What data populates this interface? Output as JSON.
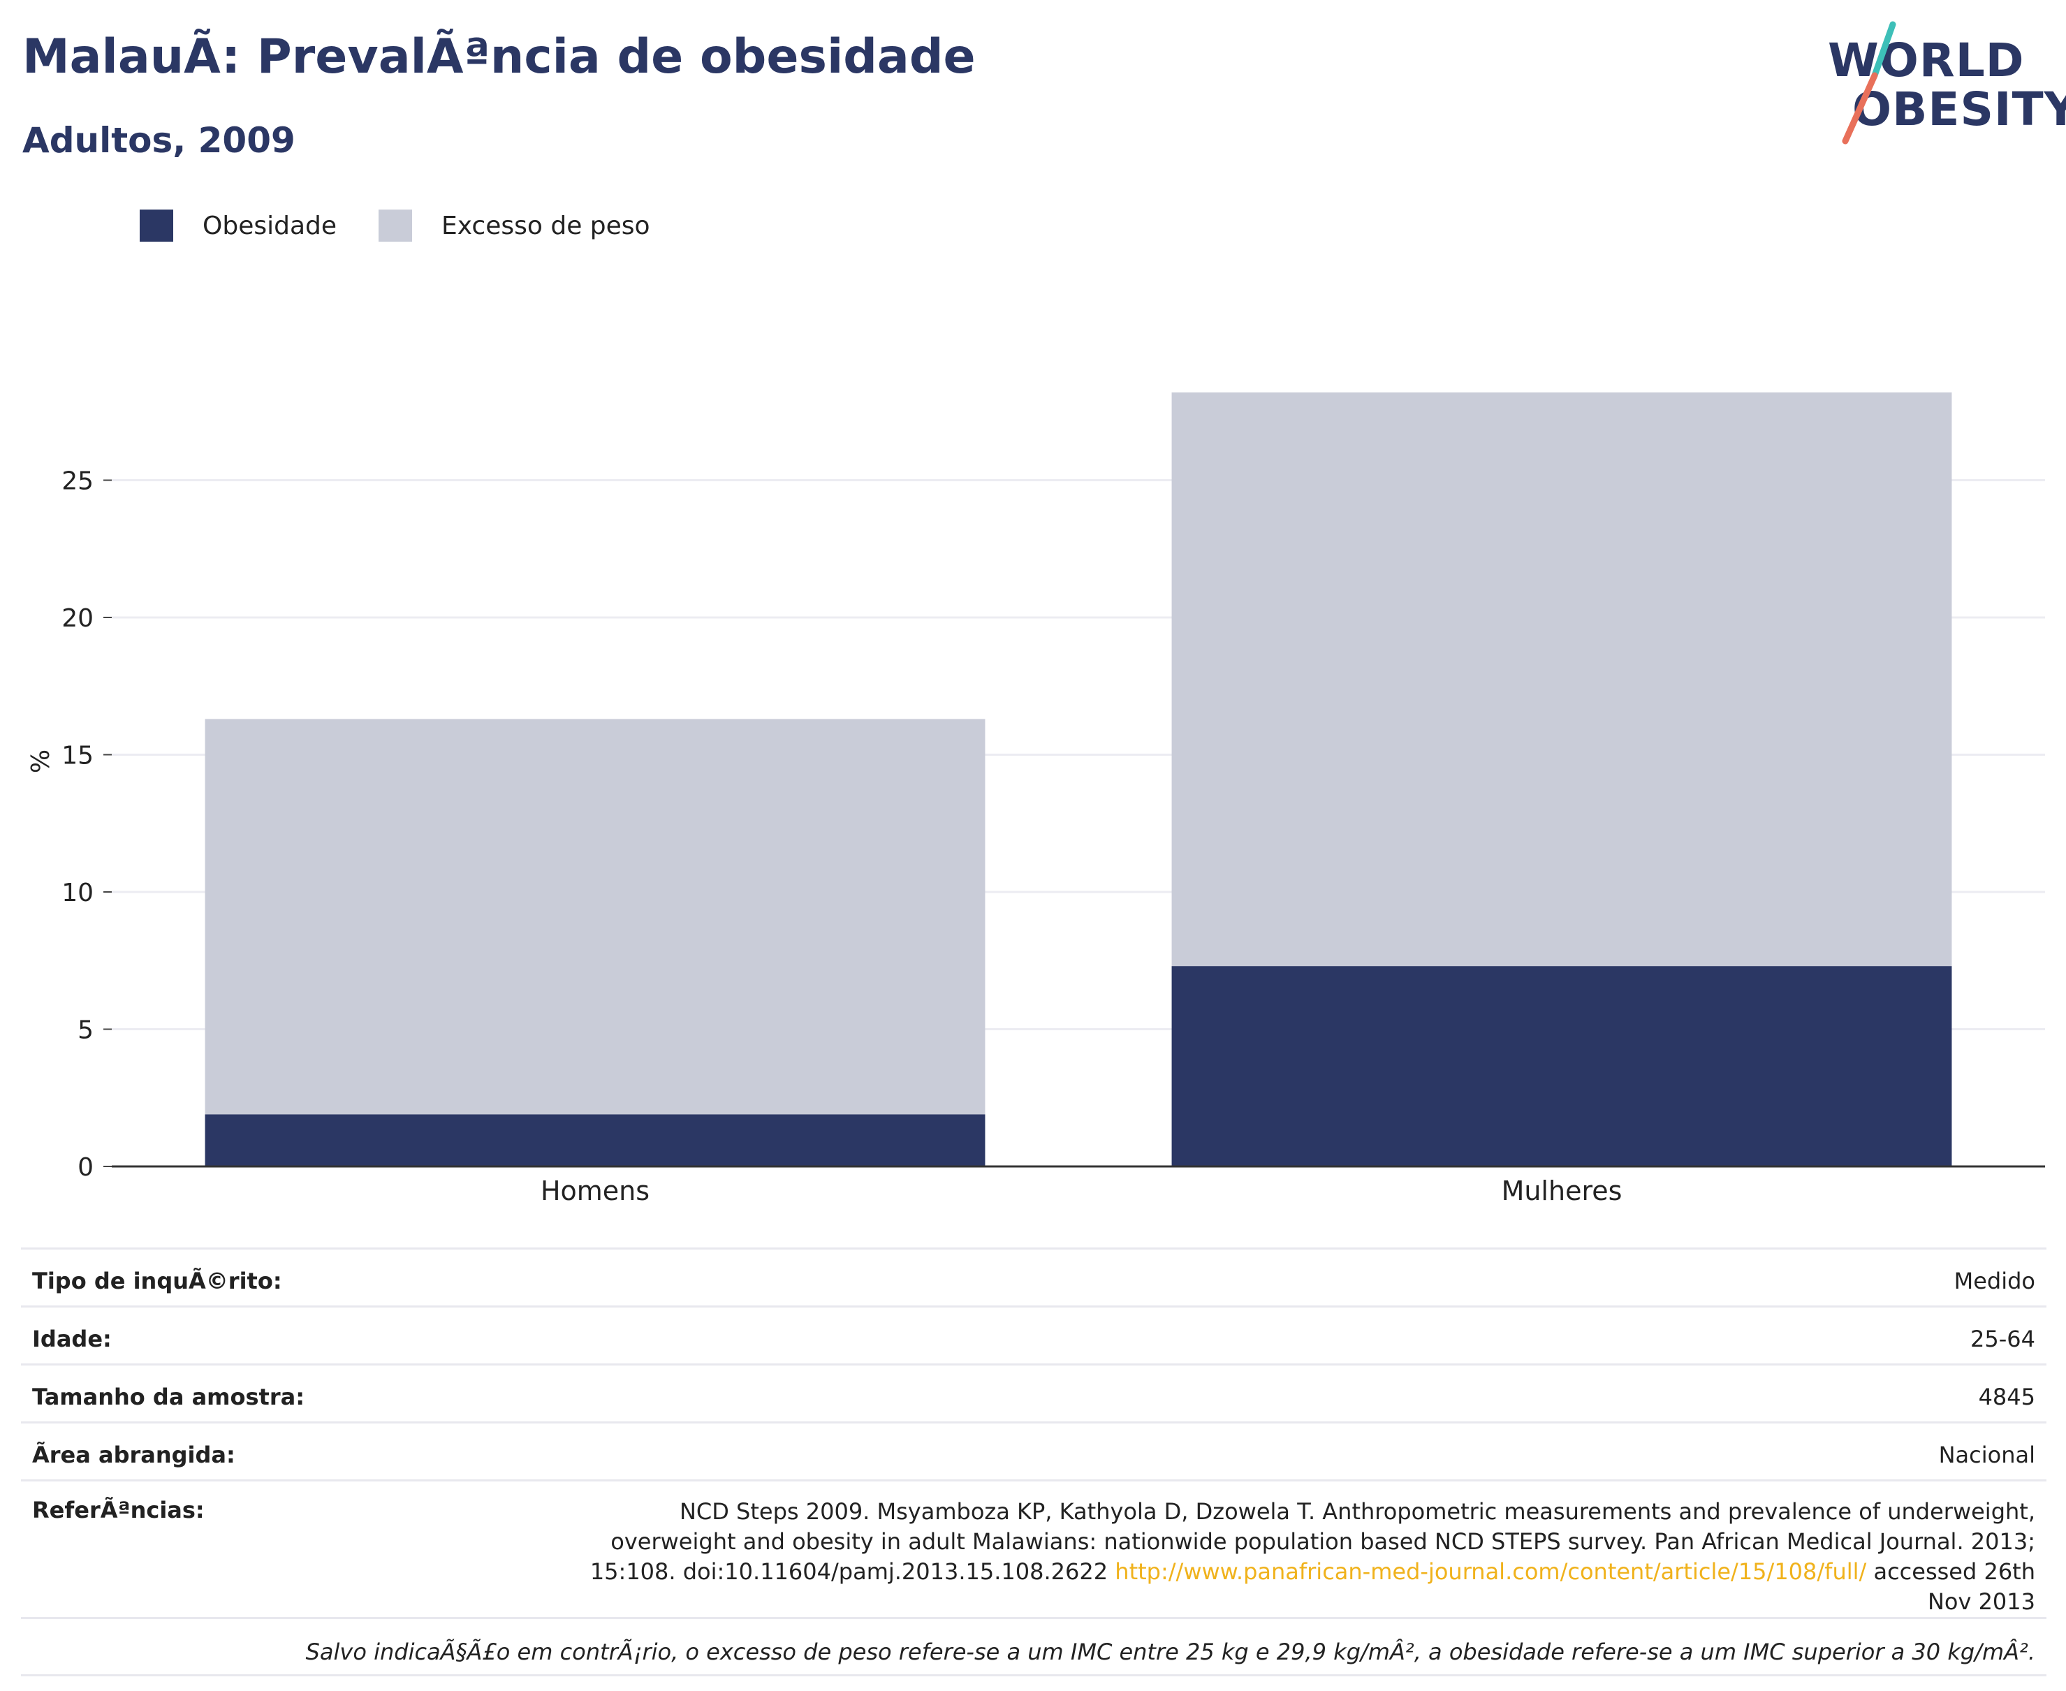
{
  "header": {
    "title": "MalauÃ: PrevalÃªncia de obesidade",
    "subtitle": "Adultos, 2009"
  },
  "logo": {
    "line1": "WORLD",
    "line2": "OBESITY"
  },
  "colors": {
    "obesity": "#2b3764",
    "overweight": "#c9ccd8",
    "accent_teal": "#3dbfb8",
    "accent_coral": "#e8705a",
    "link": "#f0b21c"
  },
  "chart_data": {
    "type": "bar",
    "stacked": true,
    "categories": [
      "Homens",
      "Mulheres"
    ],
    "series": [
      {
        "name": "Obesidade",
        "values": [
          1.9,
          7.3
        ]
      },
      {
        "name": "Excesso de peso",
        "values": [
          14.4,
          20.9
        ]
      }
    ],
    "ylabel": "%",
    "yticks": [
      0,
      5,
      10,
      15,
      20,
      25
    ],
    "ylim": [
      0,
      28.5
    ],
    "grid": true,
    "legend": "top-left"
  },
  "info": {
    "survey_type": {
      "label": "Tipo de inquÃ©rito:",
      "value": "Medido"
    },
    "age": {
      "label": "Idade:",
      "value": "25-64"
    },
    "sample_size": {
      "label": "Tamanho da amostra:",
      "value": "4845"
    },
    "area": {
      "label": "Ã­rea abrangida:",
      "value": "Nacional"
    },
    "references": {
      "label": "ReferÃªncias:",
      "text": "NCD Steps 2009. Msyamboza KP, Kathyola D, Dzowela T. Anthropometric measurements and prevalence of underweight, overweight and obesity in adult Malawians: nationwide population based NCD STEPS survey. Pan African Medical Journal. 2013; 15:108. doi:10.11604/pamj.2013.15.108.2622",
      "link": "http://www.panafrican-med-journal.com/content/article/15/108/full/",
      "accessed": "accessed 26th Nov 2013"
    },
    "note": "Salvo indicaÃ§Ã£o em contrÃ¡rio, o excesso de peso refere-se a um IMC entre 25 kg e 29,9 kg/mÂ², a obesidade refere-se a um IMC superior a 30 kg/mÂ²."
  }
}
